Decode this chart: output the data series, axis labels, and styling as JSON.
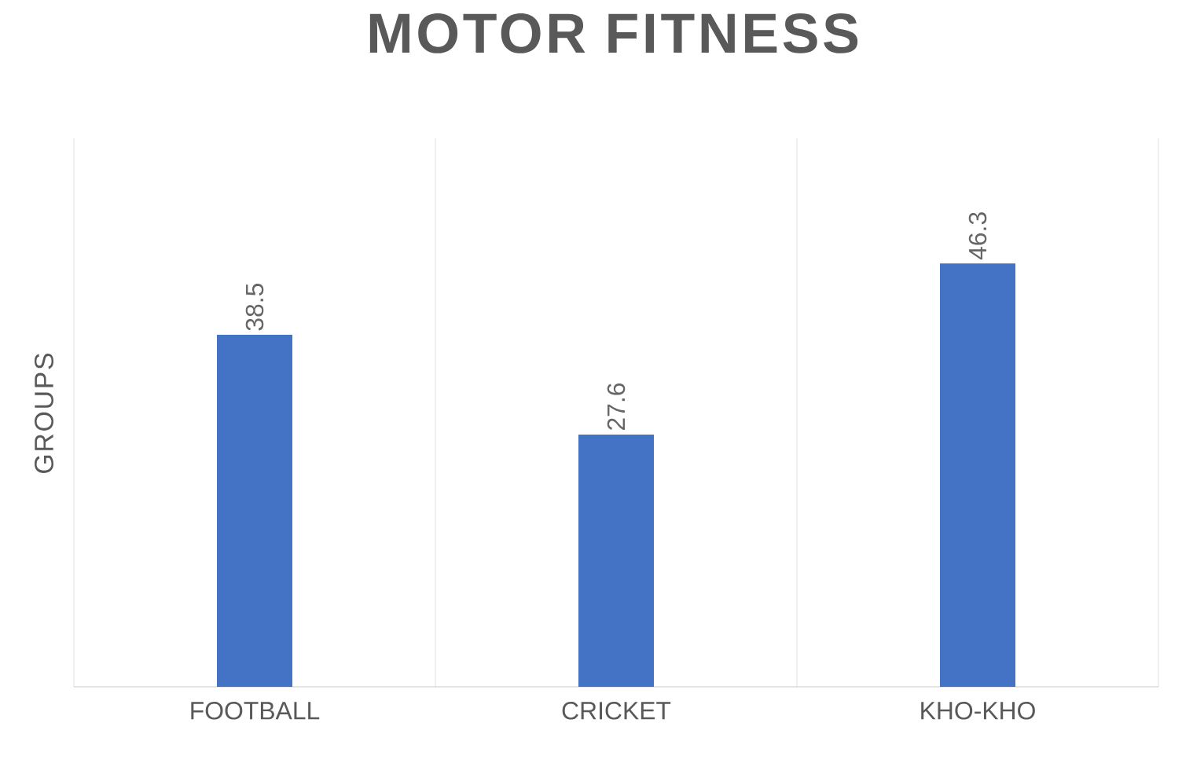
{
  "chart_data": {
    "type": "bar",
    "title": "MOTOR  FITNESS",
    "ylabel": "GROUPS",
    "categories": [
      "FOOTBALL",
      "CRICKET",
      "KHO-KHO"
    ],
    "values": [
      38.5,
      27.6,
      46.3
    ],
    "color": "#4472c4",
    "ylim": [
      0,
      60
    ],
    "tick_labels": "x",
    "grid": "x",
    "data_labels": true
  }
}
